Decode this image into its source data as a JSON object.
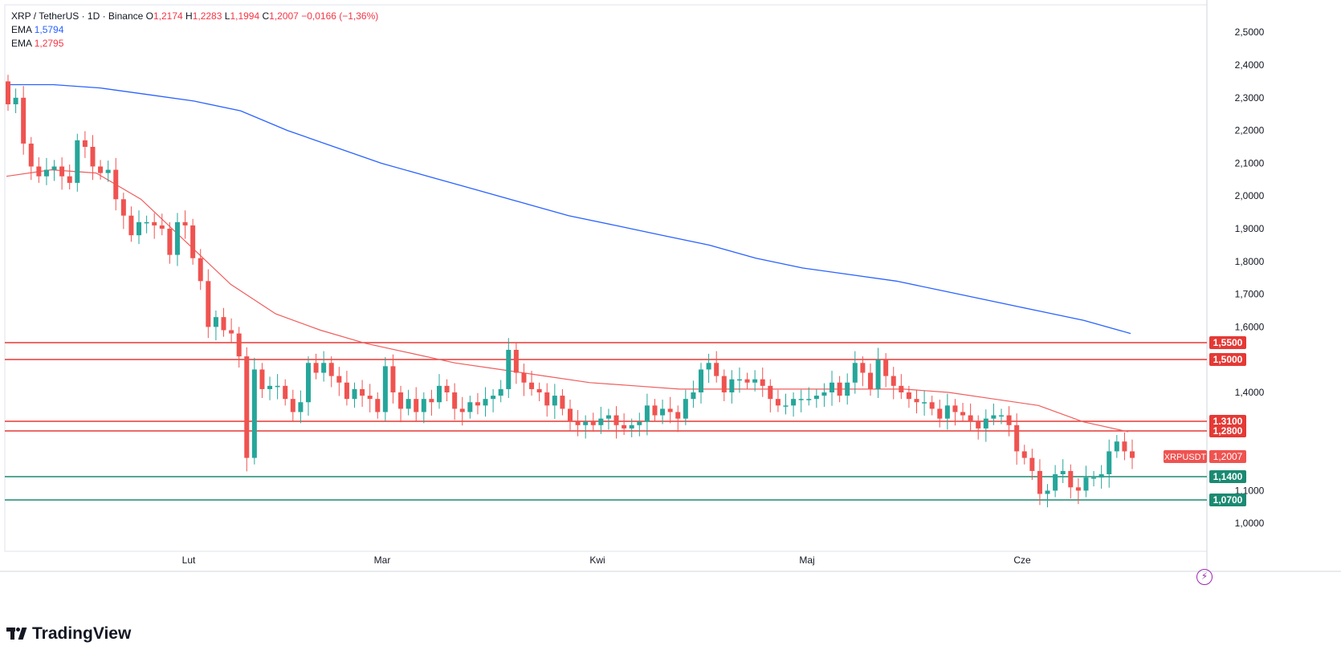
{
  "legend": {
    "symbol": "XRP / TetherUS · 1D · Binance",
    "o_label": "O",
    "o": "1,2174",
    "h_label": "H",
    "h": "1,2283",
    "l_label": "L",
    "l": "1,1994",
    "c_label": "C",
    "c": "1,2007",
    "change": "−0,0166 (−1,36%)",
    "ema1_label": "EMA",
    "ema1": "1,5794",
    "ema2_label": "EMA",
    "ema2": "1,2795"
  },
  "brand": {
    "name": "TradingView"
  },
  "colors": {
    "up": "#26a69a",
    "down": "#ef5350",
    "ema_long": "#2962ff",
    "ema_short": "#f05d5d",
    "resistance": "#e53935",
    "support": "#1b8a72",
    "axis_text": "#131722",
    "grid": "#e0e3eb"
  },
  "chart_data": {
    "type": "candlestick",
    "symbol": "XRPUSDT",
    "last_price": 1.2007,
    "y_axis": {
      "ticks": [
        "2,5000",
        "2,4000",
        "2,3000",
        "2,2000",
        "2,1000",
        "2,0000",
        "1,9000",
        "1,8000",
        "1,7000",
        "1,6000",
        "1,4000",
        "1,1000",
        "1,0000"
      ],
      "range": [
        0.9,
        2.56
      ]
    },
    "x_axis": {
      "labels": [
        "Lut",
        "Mar",
        "Kwi",
        "Maj",
        "Cze"
      ]
    },
    "levels": [
      {
        "label": "1,5500",
        "value": 1.55,
        "kind": "resistance"
      },
      {
        "label": "1,5000",
        "value": 1.5,
        "kind": "resistance"
      },
      {
        "label": "1,3100",
        "value": 1.31,
        "kind": "resistance"
      },
      {
        "label": "1,2800",
        "value": 1.28,
        "kind": "resistance"
      },
      {
        "label": "1,1400",
        "value": 1.14,
        "kind": "support"
      },
      {
        "label": "1,0700",
        "value": 1.07,
        "kind": "support"
      }
    ],
    "price_tag": {
      "name": "XRPUSDT",
      "value": "1,2007"
    },
    "closes": [
      2.28,
      2.3,
      2.16,
      2.09,
      2.06,
      2.08,
      2.09,
      2.06,
      2.04,
      2.17,
      2.15,
      2.09,
      2.07,
      2.08,
      1.99,
      1.94,
      1.88,
      1.92,
      1.92,
      1.91,
      1.9,
      1.82,
      1.92,
      1.91,
      1.81,
      1.74,
      1.6,
      1.63,
      1.59,
      1.58,
      1.51,
      1.2,
      1.47,
      1.41,
      1.42,
      1.42,
      1.38,
      1.34,
      1.37,
      1.49,
      1.46,
      1.49,
      1.45,
      1.43,
      1.38,
      1.41,
      1.39,
      1.38,
      1.34,
      1.48,
      1.4,
      1.35,
      1.38,
      1.34,
      1.38,
      1.37,
      1.42,
      1.4,
      1.35,
      1.34,
      1.37,
      1.36,
      1.38,
      1.39,
      1.41,
      1.53,
      1.46,
      1.43,
      1.41,
      1.4,
      1.36,
      1.39,
      1.35,
      1.31,
      1.3,
      1.31,
      1.3,
      1.32,
      1.33,
      1.3,
      1.29,
      1.3,
      1.31,
      1.36,
      1.33,
      1.35,
      1.34,
      1.32,
      1.38,
      1.4,
      1.47,
      1.49,
      1.45,
      1.4,
      1.44,
      1.44,
      1.43,
      1.44,
      1.42,
      1.38,
      1.36,
      1.36,
      1.38,
      1.38,
      1.38,
      1.39,
      1.4,
      1.43,
      1.39,
      1.43,
      1.49,
      1.46,
      1.41,
      1.5,
      1.45,
      1.42,
      1.4,
      1.38,
      1.37,
      1.37,
      1.35,
      1.32,
      1.36,
      1.34,
      1.33,
      1.31,
      1.29,
      1.32,
      1.33,
      1.33,
      1.3,
      1.22,
      1.2,
      1.16,
      1.09,
      1.1,
      1.15,
      1.16,
      1.11,
      1.1,
      1.14,
      1.14,
      1.15,
      1.22,
      1.25,
      1.22,
      1.2
    ],
    "ema_long": [
      2.34,
      2.34,
      2.33,
      2.31,
      2.29,
      2.26,
      2.2,
      2.15,
      2.1,
      2.06,
      2.02,
      1.98,
      1.94,
      1.91,
      1.88,
      1.85,
      1.81,
      1.78,
      1.76,
      1.74,
      1.71,
      1.68,
      1.65,
      1.62,
      1.58
    ],
    "ema_short": [
      2.06,
      2.08,
      2.07,
      1.99,
      1.86,
      1.73,
      1.64,
      1.59,
      1.55,
      1.52,
      1.49,
      1.47,
      1.45,
      1.43,
      1.42,
      1.41,
      1.41,
      1.41,
      1.41,
      1.41,
      1.41,
      1.4,
      1.38,
      1.36,
      1.31,
      1.28
    ]
  }
}
